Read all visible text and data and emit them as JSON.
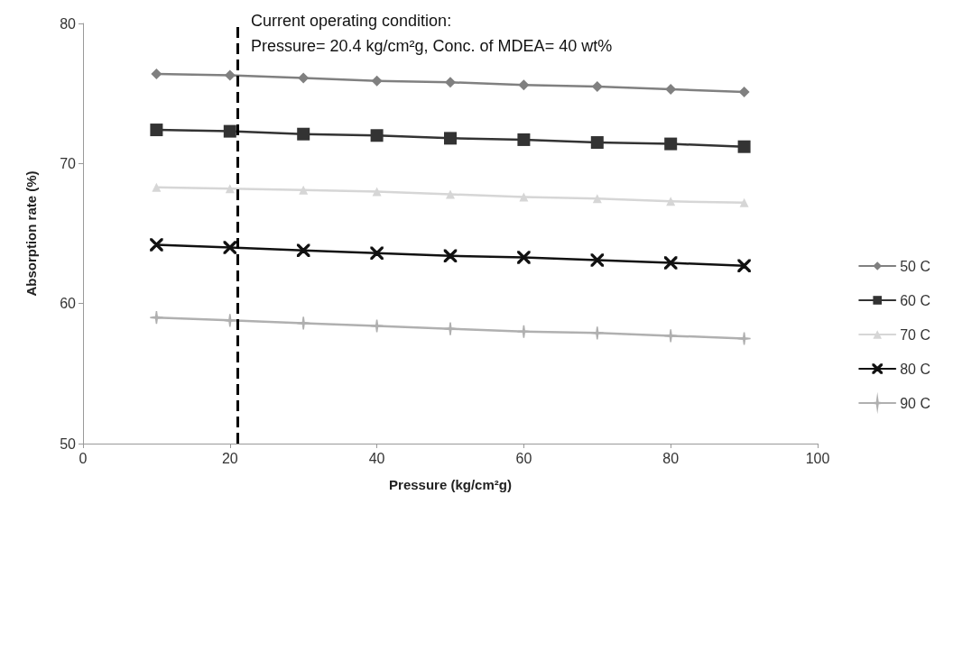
{
  "chart_data": {
    "type": "line",
    "xlabel": "Pressure (kg/cm²g)",
    "ylabel": "Absorption rate (%)",
    "x": [
      10,
      20,
      30,
      40,
      50,
      60,
      70,
      80,
      90
    ],
    "series": [
      {
        "name": "50 C",
        "color": "#808080",
        "marker": "diamond",
        "values": [
          76.4,
          76.3,
          76.1,
          75.9,
          75.8,
          75.6,
          75.5,
          75.3,
          75.1
        ]
      },
      {
        "name": "60 C",
        "color": "#333333",
        "marker": "square",
        "values": [
          72.4,
          72.3,
          72.1,
          72.0,
          71.8,
          71.7,
          71.5,
          71.4,
          71.2
        ]
      },
      {
        "name": "70 C",
        "color": "#d6d6d6",
        "marker": "triangle",
        "values": [
          68.3,
          68.2,
          68.1,
          68.0,
          67.8,
          67.6,
          67.5,
          67.3,
          67.2
        ]
      },
      {
        "name": "80 C",
        "color": "#111111",
        "marker": "cross",
        "values": [
          64.2,
          64.0,
          63.8,
          63.6,
          63.4,
          63.3,
          63.1,
          62.9,
          62.7
        ]
      },
      {
        "name": "90 C",
        "color": "#b0b0b0",
        "marker": "star",
        "values": [
          59.0,
          58.8,
          58.6,
          58.4,
          58.2,
          58.0,
          57.9,
          57.7,
          57.5
        ]
      }
    ],
    "xlim": [
      0,
      100
    ],
    "xticks": [
      0,
      20,
      40,
      60,
      80,
      100
    ],
    "ylim": [
      50,
      80
    ],
    "yticks": [
      50,
      60,
      70,
      80
    ],
    "ref_lines": [
      {
        "axis": "x",
        "value": 21,
        "color": "#000000",
        "line_style": "dashed"
      }
    ],
    "annotations": [
      "Current operating condition:",
      "Pressure= 20.4 kg/cm²g, Conc. of MDEA= 40 wt%"
    ],
    "grid": false,
    "legend": "right"
  }
}
